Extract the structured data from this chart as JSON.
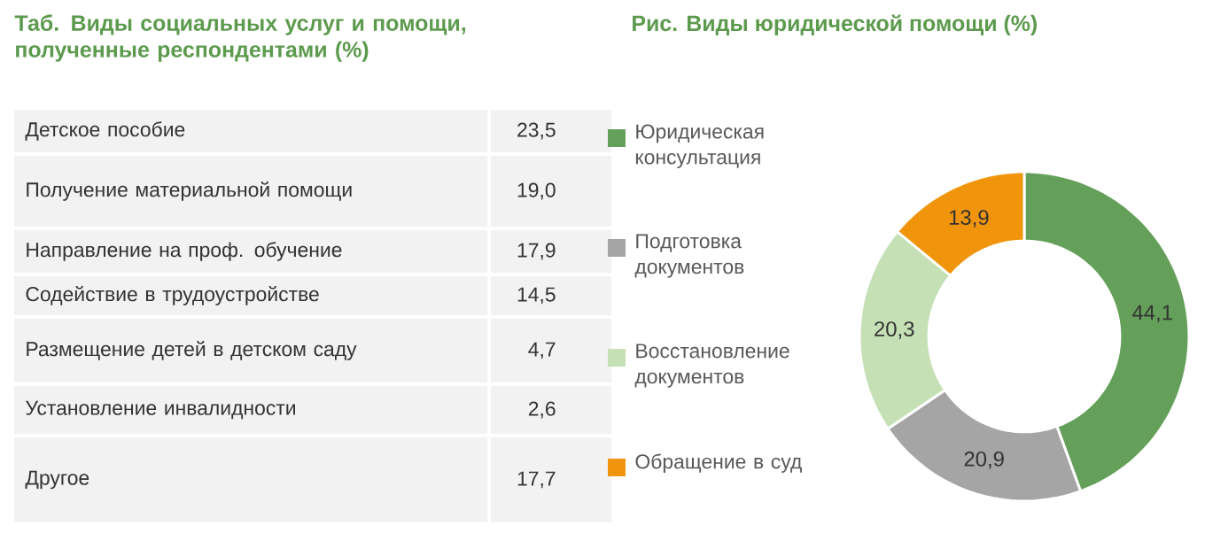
{
  "chart_data": [
    {
      "type": "other",
      "title": "Таб. Виды социальных услуг и помощи, полученные респондентами (%)",
      "categories": [
        "Детское пособие",
        "Получение материальной помощи",
        "Направление на проф. обучение",
        "Содействие в трудоустройстве",
        "Размещение детей в детском саду",
        "Установление инвалидности",
        "Другое"
      ],
      "values": [
        23.5,
        19.0,
        17.9,
        14.5,
        4.7,
        2.6,
        17.7
      ],
      "value_labels": [
        "23,5",
        "19,0",
        "17,9",
        "14,5",
        "4,7",
        "2,6",
        "17,7"
      ]
    },
    {
      "type": "donut",
      "title": "Рис. Виды юридической помощи (%)",
      "categories": [
        "Юридическая консультация",
        "Подготовка документов",
        "Восстановление документов",
        "Обращение в суд"
      ],
      "values": [
        44.1,
        20.9,
        20.3,
        13.9
      ],
      "value_labels": [
        "44,1",
        "20,9",
        "20,3",
        "13,9"
      ],
      "colors": [
        "#65a05a",
        "#a5a5a5",
        "#c5e0b4",
        "#f0950b"
      ],
      "legend": "left"
    }
  ]
}
